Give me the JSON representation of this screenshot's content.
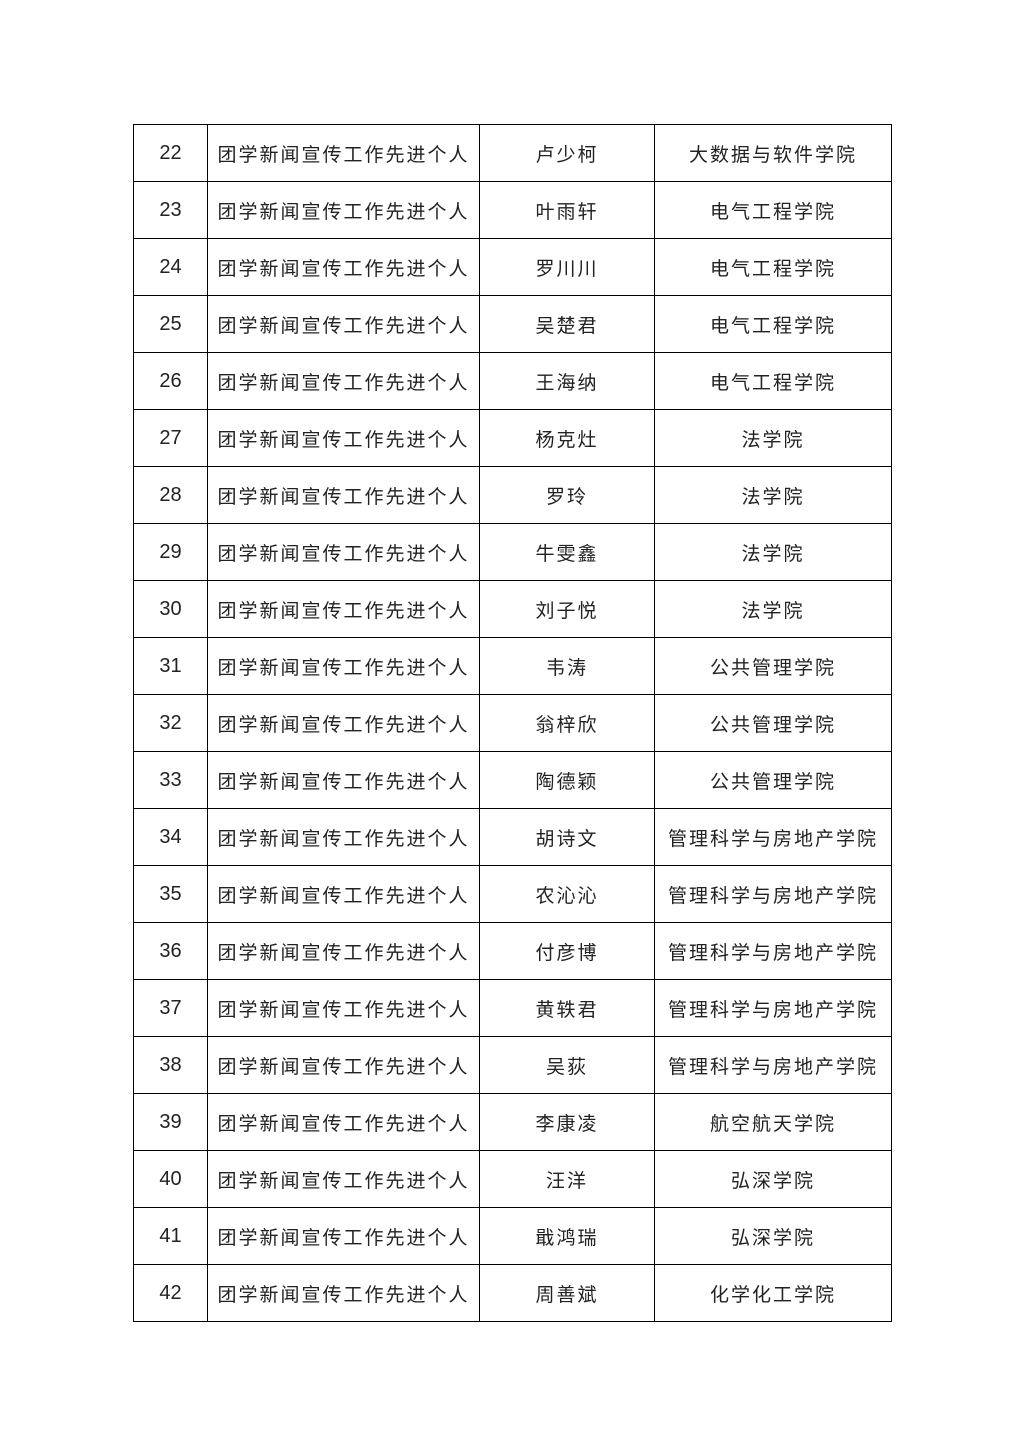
{
  "table": {
    "rows": [
      [
        "22",
        "团学新闻宣传工作先进个人",
        "卢少柯",
        "大数据与软件学院"
      ],
      [
        "23",
        "团学新闻宣传工作先进个人",
        "叶雨轩",
        "电气工程学院"
      ],
      [
        "24",
        "团学新闻宣传工作先进个人",
        "罗川川",
        "电气工程学院"
      ],
      [
        "25",
        "团学新闻宣传工作先进个人",
        "吴楚君",
        "电气工程学院"
      ],
      [
        "26",
        "团学新闻宣传工作先进个人",
        "王海纳",
        "电气工程学院"
      ],
      [
        "27",
        "团学新闻宣传工作先进个人",
        "杨克灶",
        "法学院"
      ],
      [
        "28",
        "团学新闻宣传工作先进个人",
        "罗玲",
        "法学院"
      ],
      [
        "29",
        "团学新闻宣传工作先进个人",
        "牛雯鑫",
        "法学院"
      ],
      [
        "30",
        "团学新闻宣传工作先进个人",
        "刘子悦",
        "法学院"
      ],
      [
        "31",
        "团学新闻宣传工作先进个人",
        "韦涛",
        "公共管理学院"
      ],
      [
        "32",
        "团学新闻宣传工作先进个人",
        "翁梓欣",
        "公共管理学院"
      ],
      [
        "33",
        "团学新闻宣传工作先进个人",
        "陶德颖",
        "公共管理学院"
      ],
      [
        "34",
        "团学新闻宣传工作先进个人",
        "胡诗文",
        "管理科学与房地产学院"
      ],
      [
        "35",
        "团学新闻宣传工作先进个人",
        "农沁沁",
        "管理科学与房地产学院"
      ],
      [
        "36",
        "团学新闻宣传工作先进个人",
        "付彦博",
        "管理科学与房地产学院"
      ],
      [
        "37",
        "团学新闻宣传工作先进个人",
        "黄轶君",
        "管理科学与房地产学院"
      ],
      [
        "38",
        "团学新闻宣传工作先进个人",
        "吴荻",
        "管理科学与房地产学院"
      ],
      [
        "39",
        "团学新闻宣传工作先进个人",
        "李康凌",
        "航空航天学院"
      ],
      [
        "40",
        "团学新闻宣传工作先进个人",
        "汪洋",
        "弘深学院"
      ],
      [
        "41",
        "团学新闻宣传工作先进个人",
        "戢鸿瑞",
        "弘深学院"
      ],
      [
        "42",
        "团学新闻宣传工作先进个人",
        "周善斌",
        "化学化工学院"
      ]
    ]
  }
}
